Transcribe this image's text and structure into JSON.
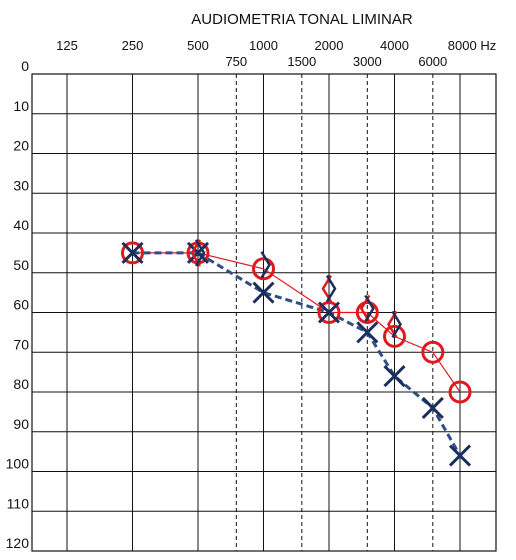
{
  "chart_data": {
    "type": "line",
    "title": "AUDIOMETRIA TONAL LIMINAR",
    "x_scale": "log",
    "y_inverted": true,
    "grid": true,
    "xlim": [
      125,
      8000
    ],
    "ylim": [
      0,
      120
    ],
    "x_ticks_main": [
      {
        "value": 125,
        "label": "125"
      },
      {
        "value": 250,
        "label": "250"
      },
      {
        "value": 500,
        "label": "500"
      },
      {
        "value": 1000,
        "label": "1000"
      },
      {
        "value": 2000,
        "label": "2000"
      },
      {
        "value": 4000,
        "label": "4000"
      },
      {
        "value": 8000,
        "label": "8000 Hz"
      }
    ],
    "x_ticks_inter": [
      {
        "value": 750,
        "label": "750"
      },
      {
        "value": 1500,
        "label": "1500"
      },
      {
        "value": 3000,
        "label": "3000"
      },
      {
        "value": 6000,
        "label": "6000"
      }
    ],
    "y_ticks": [
      0,
      10,
      20,
      30,
      40,
      50,
      60,
      70,
      80,
      90,
      100,
      110,
      120
    ],
    "colors": {
      "right_ear": "#e0191f",
      "left_ear": "#1a2f5c",
      "left_line": "#2d4f85",
      "grid": "#111111"
    },
    "series": [
      {
        "ear": "right",
        "marker": "circle",
        "line": "solid",
        "points": [
          [
            250,
            45
          ],
          [
            500,
            45
          ],
          [
            1000,
            49
          ],
          [
            2000,
            60
          ],
          [
            3000,
            60
          ],
          [
            4000,
            66
          ],
          [
            6000,
            70
          ],
          [
            8000,
            80
          ]
        ]
      },
      {
        "ear": "left",
        "marker": "x",
        "line": "dashed",
        "points": [
          [
            250,
            45
          ],
          [
            500,
            45
          ],
          [
            1000,
            55
          ],
          [
            2000,
            60
          ],
          [
            3000,
            65
          ],
          [
            4000,
            76
          ],
          [
            6000,
            84
          ],
          [
            8000,
            96
          ]
        ]
      },
      {
        "ear": "right",
        "marker": "bracket-open",
        "line": "none",
        "points": [
          [
            500,
            45
          ],
          [
            2000,
            54
          ],
          [
            3000,
            59
          ],
          [
            4000,
            63
          ]
        ]
      },
      {
        "ear": "left",
        "marker": "bracket-close",
        "line": "none",
        "points": [
          [
            500,
            45
          ],
          [
            1000,
            48
          ],
          [
            2000,
            54
          ],
          [
            3000,
            59
          ],
          [
            4000,
            63
          ]
        ]
      }
    ]
  }
}
